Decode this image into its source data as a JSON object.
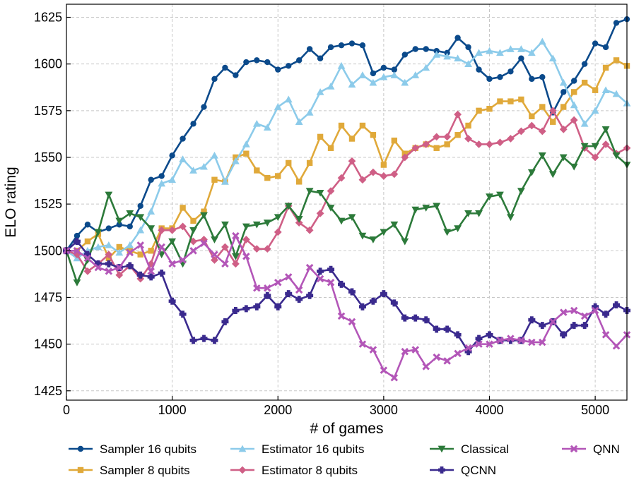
{
  "chart_data": {
    "type": "line",
    "title": "",
    "xlabel": "# of games",
    "ylabel": "ELO rating",
    "xlim": [
      0,
      5300
    ],
    "ylim": [
      1420,
      1632
    ],
    "xticks": [
      0,
      1000,
      2000,
      3000,
      4000,
      5000
    ],
    "yticks": [
      1425,
      1450,
      1475,
      1500,
      1525,
      1550,
      1575,
      1600,
      1625
    ],
    "grid": true,
    "legend_position": "bottom",
    "x": [
      0,
      100,
      200,
      300,
      400,
      500,
      600,
      700,
      800,
      900,
      1000,
      1100,
      1200,
      1300,
      1400,
      1500,
      1600,
      1700,
      1800,
      1900,
      2000,
      2100,
      2200,
      2300,
      2400,
      2500,
      2600,
      2700,
      2800,
      2900,
      3000,
      3100,
      3200,
      3300,
      3400,
      3500,
      3600,
      3700,
      3800,
      3900,
      4000,
      4100,
      4200,
      4300,
      4400,
      4500,
      4600,
      4700,
      4800,
      4900,
      5000,
      5100,
      5200,
      5300
    ],
    "series": [
      {
        "name": "Sampler 16 qubits",
        "color": "#0b4a8b",
        "marker": "circle",
        "values": [
          1500,
          1508,
          1514,
          1510,
          1512,
          1514,
          1513,
          1524,
          1538,
          1540,
          1551,
          1560,
          1568,
          1577,
          1592,
          1598,
          1594,
          1601,
          1602,
          1601,
          1597,
          1599,
          1602,
          1608,
          1603,
          1609,
          1610,
          1611,
          1610,
          1595,
          1598,
          1597,
          1605,
          1608,
          1608,
          1607,
          1606,
          1614,
          1609,
          1597,
          1592,
          1593,
          1596,
          1603,
          1592,
          1593,
          1574,
          1585,
          1591,
          1600,
          1611,
          1609,
          1622,
          1624
        ]
      },
      {
        "name": "Sampler 8 qubits",
        "color": "#e0a93a",
        "marker": "square",
        "values": [
          1500,
          1500,
          1505,
          1509,
          1496,
          1502,
          1500,
          1498,
          1500,
          1512,
          1512,
          1523,
          1516,
          1521,
          1538,
          1537,
          1550,
          1552,
          1543,
          1539,
          1540,
          1547,
          1537,
          1547,
          1561,
          1555,
          1567,
          1560,
          1567,
          1562,
          1546,
          1559,
          1552,
          1555,
          1557,
          1555,
          1557,
          1562,
          1567,
          1575,
          1576,
          1580,
          1580,
          1581,
          1572,
          1577,
          1569,
          1577,
          1585,
          1590,
          1586,
          1598,
          1602,
          1599
        ]
      },
      {
        "name": "Estimator 16 qubits",
        "color": "#8ccbea",
        "marker": "triangle-up",
        "values": [
          1500,
          1496,
          1500,
          1502,
          1503,
          1499,
          1503,
          1511,
          1521,
          1536,
          1538,
          1549,
          1543,
          1545,
          1551,
          1537,
          1548,
          1557,
          1568,
          1566,
          1577,
          1581,
          1569,
          1574,
          1585,
          1588,
          1599,
          1589,
          1594,
          1590,
          1593,
          1594,
          1590,
          1594,
          1598,
          1605,
          1604,
          1603,
          1600,
          1606,
          1607,
          1606,
          1608,
          1608,
          1606,
          1612,
          1603,
          1590,
          1578,
          1568,
          1575,
          1586,
          1584,
          1579
        ]
      },
      {
        "name": "Estimator 8 qubits",
        "color": "#cf5f86",
        "marker": "diamond",
        "values": [
          1500,
          1498,
          1489,
          1493,
          1498,
          1487,
          1492,
          1485,
          1493,
          1511,
          1511,
          1513,
          1505,
          1506,
          1495,
          1502,
          1493,
          1506,
          1501,
          1501,
          1510,
          1524,
          1515,
          1511,
          1520,
          1532,
          1539,
          1548,
          1538,
          1542,
          1540,
          1541,
          1550,
          1555,
          1557,
          1561,
          1561,
          1573,
          1560,
          1557,
          1557,
          1558,
          1560,
          1564,
          1567,
          1564,
          1575,
          1565,
          1570,
          1555,
          1550,
          1557,
          1552,
          1555
        ]
      },
      {
        "name": "Classical",
        "color": "#2c7a3a",
        "marker": "triangle-down",
        "values": [
          1500,
          1483,
          1495,
          1510,
          1530,
          1516,
          1520,
          1518,
          1512,
          1498,
          1505,
          1493,
          1511,
          1519,
          1506,
          1514,
          1497,
          1513,
          1514,
          1515,
          1518,
          1524,
          1517,
          1532,
          1531,
          1523,
          1516,
          1518,
          1508,
          1506,
          1510,
          1514,
          1505,
          1522,
          1523,
          1524,
          1510,
          1512,
          1520,
          1520,
          1529,
          1530,
          1518,
          1532,
          1542,
          1551,
          1541,
          1550,
          1545,
          1556,
          1556,
          1565,
          1551,
          1546
        ]
      },
      {
        "name": "QCNN",
        "color": "#3a2a8e",
        "marker": "plus",
        "values": [
          1500,
          1505,
          1498,
          1493,
          1493,
          1491,
          1492,
          1487,
          1486,
          1488,
          1473,
          1466,
          1452,
          1453,
          1452,
          1462,
          1468,
          1469,
          1470,
          1476,
          1470,
          1477,
          1474,
          1476,
          1489,
          1490,
          1482,
          1478,
          1470,
          1473,
          1477,
          1472,
          1464,
          1464,
          1463,
          1458,
          1458,
          1455,
          1446,
          1453,
          1455,
          1452,
          1452,
          1452,
          1463,
          1460,
          1462,
          1455,
          1460,
          1460,
          1470,
          1466,
          1471,
          1468
        ]
      },
      {
        "name": "QNN",
        "color": "#b356b8",
        "marker": "x",
        "values": [
          1500,
          1500,
          1496,
          1491,
          1489,
          1491,
          1499,
          1503,
          1489,
          1502,
          1493,
          1495,
          1500,
          1504,
          1498,
          1493,
          1508,
          1497,
          1480,
          1480,
          1483,
          1486,
          1479,
          1491,
          1485,
          1483,
          1465,
          1462,
          1450,
          1447,
          1436,
          1432,
          1446,
          1447,
          1438,
          1443,
          1441,
          1445,
          1448,
          1450,
          1450,
          1452,
          1453,
          1452,
          1451,
          1451,
          1462,
          1467,
          1468,
          1465,
          1468,
          1455,
          1449,
          1455
        ]
      }
    ]
  }
}
